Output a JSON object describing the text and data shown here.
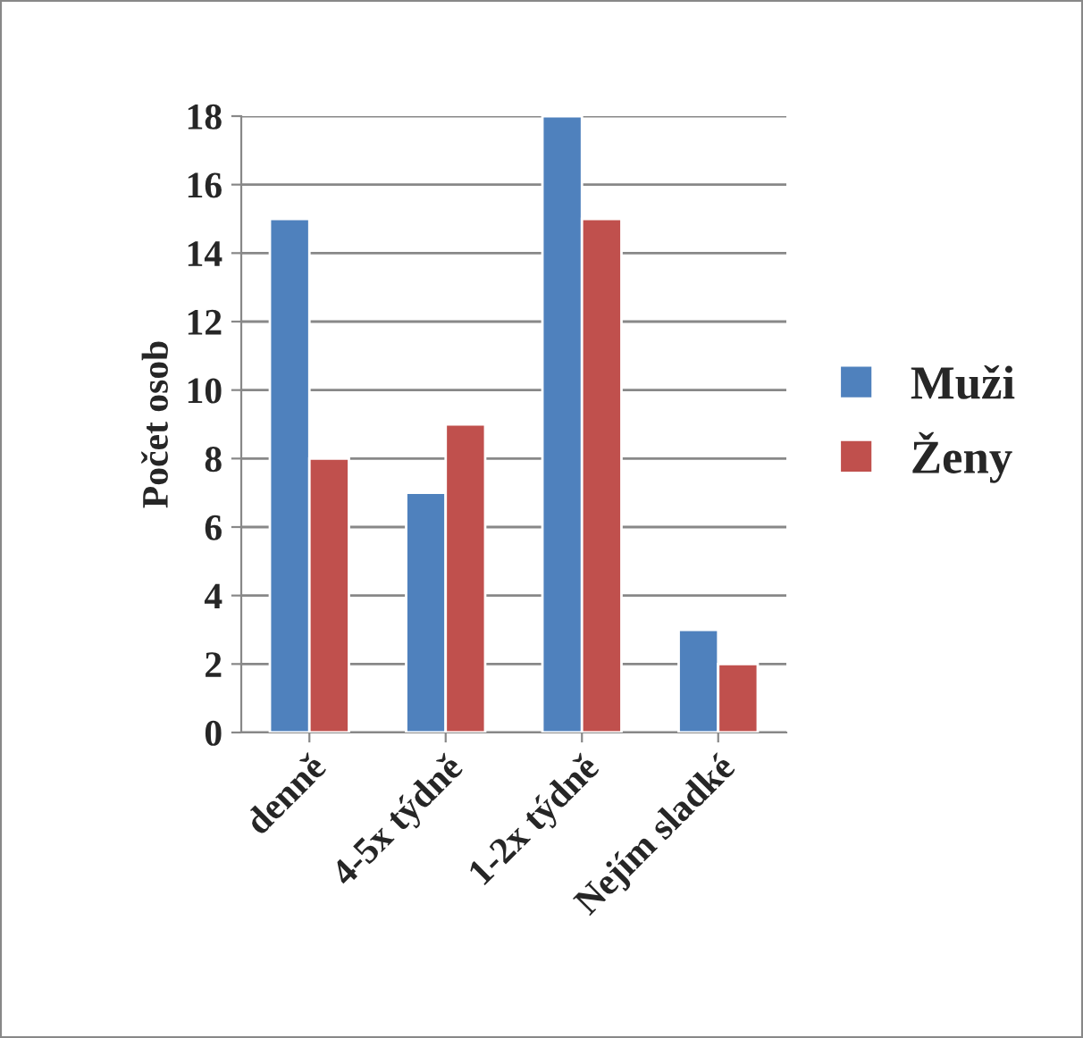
{
  "chart_data": {
    "type": "bar",
    "ylabel": "Počet osob",
    "categories": [
      "denně",
      "4-5x týdně",
      "1-2x týdně",
      "Nejím sladké"
    ],
    "series": [
      {
        "name": "Muži",
        "color": "#4f81bd",
        "values": [
          15,
          7,
          18,
          3
        ]
      },
      {
        "name": "Ženy",
        "color": "#c0504d",
        "values": [
          8,
          9,
          15,
          2
        ]
      }
    ],
    "ylim": [
      0,
      18
    ],
    "yticks": [
      0,
      2,
      4,
      6,
      8,
      10,
      12,
      14,
      16,
      18
    ],
    "grid": "y",
    "legend": "right"
  }
}
